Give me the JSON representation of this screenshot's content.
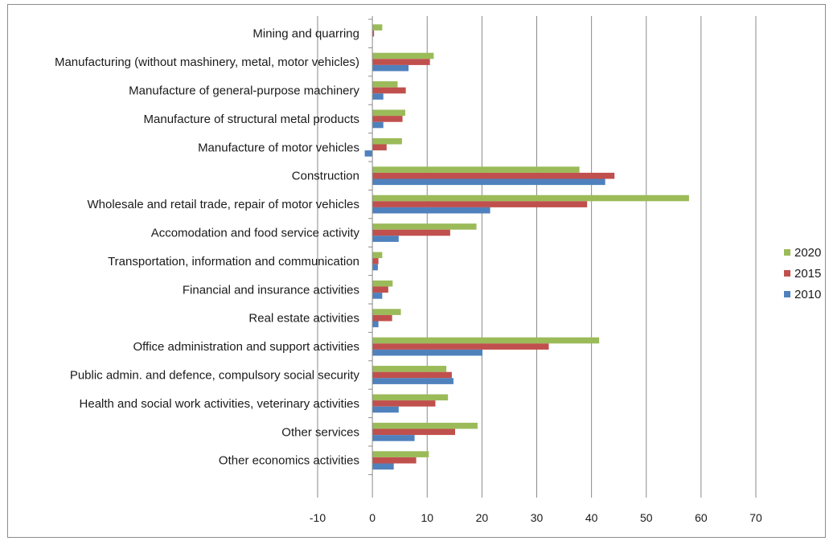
{
  "chart_data": {
    "type": "bar",
    "orientation": "horizontal",
    "title": "",
    "xlabel": "",
    "ylabel": "",
    "xlim": [
      -10,
      70
    ],
    "x_ticks": [
      -10,
      0,
      10,
      20,
      30,
      40,
      50,
      60,
      70
    ],
    "grid": true,
    "legend_position": "right",
    "categories": [
      "Mining and quarring",
      "Manufacturing (without mashinery, metal, motor vehicles)",
      "Manufacture of general-purpose machinery",
      "Manufacture of structural metal products",
      "Manufacture of motor vehicles",
      "Construction",
      "Wholesale and retail trade, repair of motor vehicles",
      "Accomodation and food service activity",
      "Transportation, information and communication",
      "Financial and insurance activities",
      "Real estate activities",
      "Office administration and support activities",
      "Public admin. and defence, compulsory social security",
      "Health and social work activities, veterinary activities",
      "Other services",
      "Other economics activities"
    ],
    "series": [
      {
        "name": "2020",
        "color": "#9bbb59",
        "values": [
          1.8,
          11.2,
          4.6,
          6.0,
          5.4,
          37.8,
          57.8,
          19.0,
          1.8,
          3.7,
          5.2,
          41.4,
          13.5,
          13.8,
          19.2,
          10.3
        ]
      },
      {
        "name": "2015",
        "color": "#c0504d",
        "values": [
          0.3,
          10.5,
          6.1,
          5.5,
          2.6,
          44.2,
          39.2,
          14.2,
          1.1,
          2.9,
          3.6,
          32.2,
          14.5,
          11.5,
          15.1,
          8.0
        ]
      },
      {
        "name": "2010",
        "color": "#4f81bd",
        "values": [
          0.0,
          6.6,
          2.0,
          2.0,
          -1.4,
          42.5,
          21.5,
          4.8,
          1.0,
          1.8,
          1.1,
          20.1,
          14.8,
          4.8,
          7.7,
          3.9
        ]
      }
    ]
  }
}
